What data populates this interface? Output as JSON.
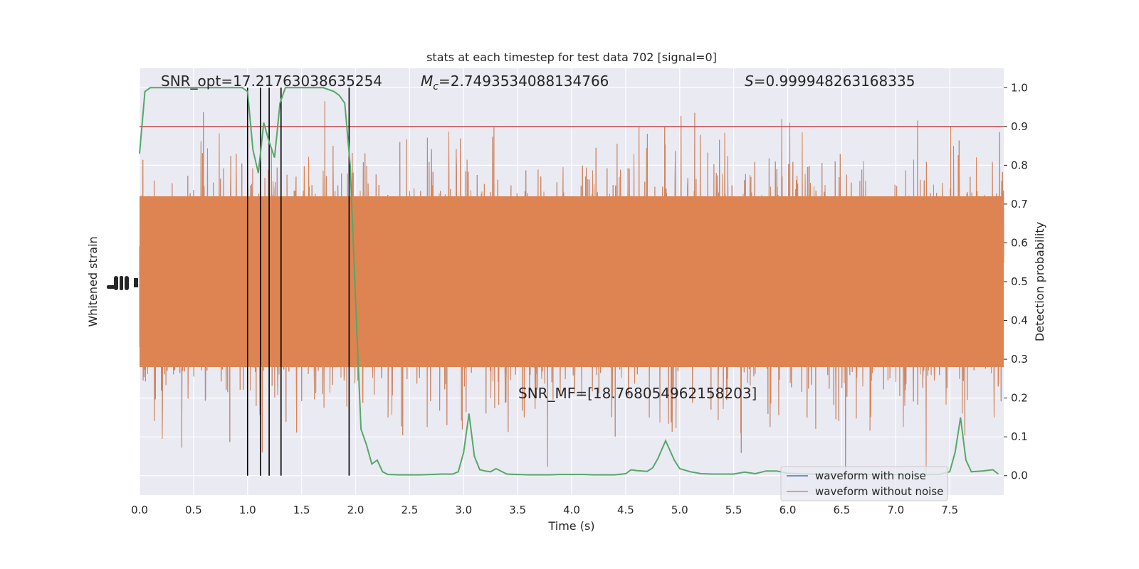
{
  "chart_data": {
    "type": "line",
    "title": "stats at each timestep for test data 702 [signal=0]",
    "xlabel": "Time (s)",
    "ylabel_left": "Whitened strain",
    "ylabel_right": "Detection probability",
    "xlim": [
      0.0,
      8.0
    ],
    "ylim_right": [
      -0.05,
      1.05
    ],
    "grid": true,
    "x_ticks": [
      "0.0",
      "0.5",
      "1.0",
      "1.5",
      "2.0",
      "2.5",
      "3.0",
      "3.5",
      "4.0",
      "4.5",
      "5.0",
      "5.5",
      "6.0",
      "6.5",
      "7.0",
      "7.5"
    ],
    "y_ticks_right": [
      "0.0",
      "0.1",
      "0.2",
      "0.3",
      "0.4",
      "0.5",
      "0.6",
      "0.7",
      "0.8",
      "0.9",
      "1.0"
    ],
    "annotations": {
      "snr_opt": "SNR_opt=17.21763038635254",
      "mc_symbol": "M",
      "mc_subscript": "c",
      "mc_value": "=2.7493534088134766",
      "s_symbol": "S",
      "s_value": "=0.999948263168335",
      "snr_mf": "SNR_MF=[18.768054962158203]"
    },
    "threshold": 0.9,
    "vertical_markers": [
      1.0,
      1.12,
      1.2,
      1.31,
      1.94
    ],
    "series": [
      {
        "name": "waveform with noise",
        "color": "#4c72b0"
      },
      {
        "name": "waveform without noise",
        "color": "#dd8452"
      }
    ],
    "probability": {
      "color": "#55a868",
      "x": [
        0.0,
        0.05,
        0.1,
        0.2,
        0.3,
        0.4,
        0.5,
        0.6,
        0.7,
        0.8,
        0.9,
        0.95,
        1.0,
        1.05,
        1.1,
        1.15,
        1.2,
        1.25,
        1.3,
        1.35,
        1.4,
        1.5,
        1.6,
        1.7,
        1.8,
        1.85,
        1.9,
        1.95,
        2.0,
        2.05,
        2.1,
        2.15,
        2.2,
        2.25,
        2.3,
        2.4,
        2.5,
        2.6,
        2.7,
        2.8,
        2.9,
        2.95,
        3.0,
        3.05,
        3.1,
        3.15,
        3.2,
        3.25,
        3.3,
        3.4,
        3.5,
        3.6,
        3.7,
        3.8,
        3.9,
        4.0,
        4.1,
        4.2,
        4.3,
        4.4,
        4.5,
        4.55,
        4.6,
        4.7,
        4.75,
        4.8,
        4.87,
        4.95,
        5.0,
        5.1,
        5.2,
        5.3,
        5.4,
        5.5,
        5.6,
        5.7,
        5.8,
        5.9,
        6.0,
        6.1,
        6.2,
        6.3,
        6.4,
        6.5,
        6.6,
        6.7,
        6.8,
        6.9,
        7.0,
        7.1,
        7.2,
        7.3,
        7.4,
        7.5,
        7.55,
        7.6,
        7.65,
        7.7,
        7.8,
        7.9,
        7.95
      ],
      "y": [
        0.83,
        0.99,
        1.0,
        1.0,
        1.0,
        1.0,
        1.0,
        1.0,
        1.0,
        1.0,
        1.0,
        1.0,
        0.99,
        0.84,
        0.78,
        0.91,
        0.86,
        0.82,
        0.96,
        1.0,
        1.0,
        1.0,
        1.0,
        1.0,
        0.99,
        0.98,
        0.96,
        0.8,
        0.45,
        0.12,
        0.08,
        0.03,
        0.04,
        0.01,
        0.003,
        0.002,
        0.002,
        0.002,
        0.003,
        0.004,
        0.004,
        0.01,
        0.06,
        0.16,
        0.05,
        0.015,
        0.012,
        0.01,
        0.018,
        0.004,
        0.003,
        0.002,
        0.002,
        0.002,
        0.003,
        0.003,
        0.003,
        0.002,
        0.002,
        0.002,
        0.005,
        0.015,
        0.013,
        0.011,
        0.02,
        0.045,
        0.09,
        0.04,
        0.018,
        0.01,
        0.005,
        0.004,
        0.004,
        0.004,
        0.009,
        0.005,
        0.012,
        0.012,
        0.006,
        0.005,
        0.004,
        0.003,
        0.004,
        0.004,
        0.004,
        0.003,
        0.003,
        0.003,
        0.003,
        0.003,
        0.003,
        0.003,
        0.003,
        0.01,
        0.06,
        0.15,
        0.04,
        0.01,
        0.012,
        0.015,
        0.004
      ]
    }
  }
}
